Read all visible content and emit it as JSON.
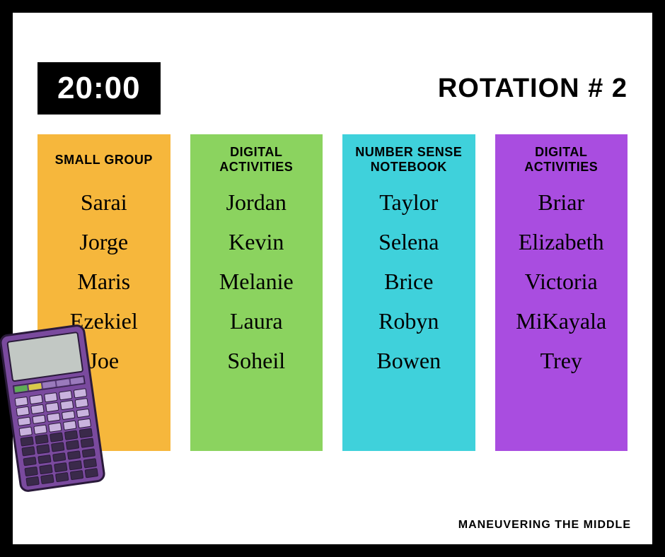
{
  "timer": "20:00",
  "rotation_title": "ROTATION # 2",
  "footer": "MANEUVERING THE MIDDLE",
  "columns": [
    {
      "header": "SMALL GROUP",
      "bg_color": "#f6b73c",
      "students": [
        "Sarai",
        "Jorge",
        "Maris",
        "Ezekiel",
        "Joe"
      ]
    },
    {
      "header": "DIGITAL ACTIVITIES",
      "bg_color": "#8bd35f",
      "students": [
        "Jordan",
        "Kevin",
        "Melanie",
        "Laura",
        "Soheil"
      ]
    },
    {
      "header": "NUMBER SENSE NOTEBOOK",
      "bg_color": "#3fd1db",
      "students": [
        "Taylor",
        "Selena",
        "Brice",
        "Robyn",
        "Bowen"
      ]
    },
    {
      "header": "DIGITAL ACTIVITIES",
      "bg_color": "#a94de0",
      "students": [
        "Briar",
        "Elizabeth",
        "Victoria",
        "MiKayala",
        "Trey"
      ]
    }
  ],
  "calculator": {
    "body_color": "#7a4a9e",
    "screen_color": "#c2c8c4"
  }
}
